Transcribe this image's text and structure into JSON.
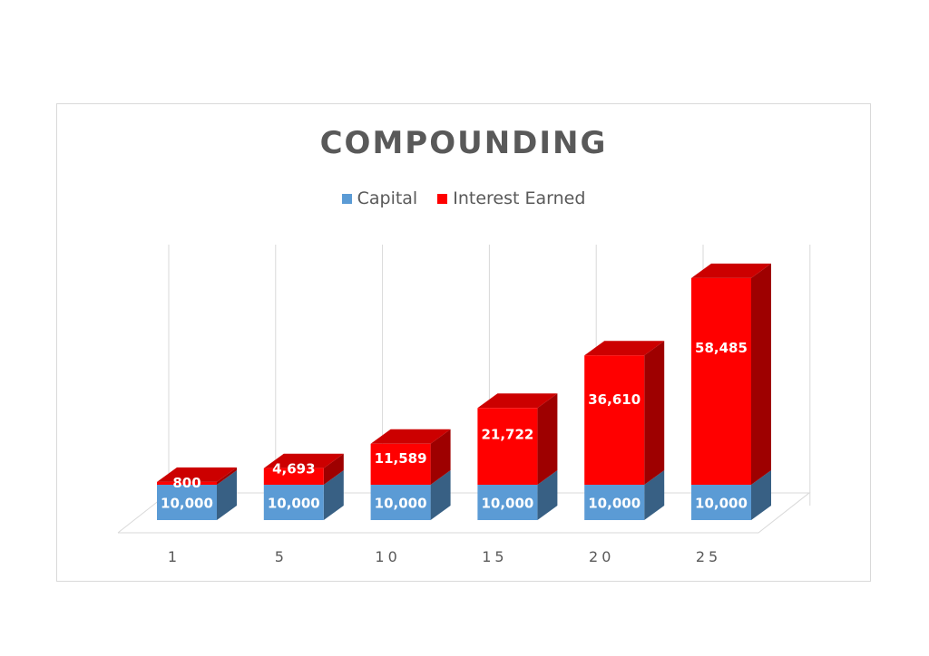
{
  "chart_data": {
    "type": "bar",
    "stacked": true,
    "three_d": true,
    "title": "COMPOUNDING",
    "categories": [
      "1",
      "5",
      "10",
      "15",
      "20",
      "25"
    ],
    "series": [
      {
        "name": "Capital",
        "color": "#5b9bd5",
        "values": [
          10000,
          10000,
          10000,
          10000,
          10000,
          10000
        ],
        "labels": [
          "10,000",
          "10,000",
          "10,000",
          "10,000",
          "10,000",
          "10,000"
        ]
      },
      {
        "name": "Interest Earned",
        "color": "#ff0000",
        "values": [
          800,
          4693,
          11589,
          21722,
          36610,
          58485
        ],
        "labels": [
          "800",
          "4,693",
          "11,589",
          "21,722",
          "36,610",
          "58,485"
        ]
      }
    ],
    "legend_position": "top",
    "grid": "vertical",
    "xlabel": "",
    "ylabel": ""
  }
}
